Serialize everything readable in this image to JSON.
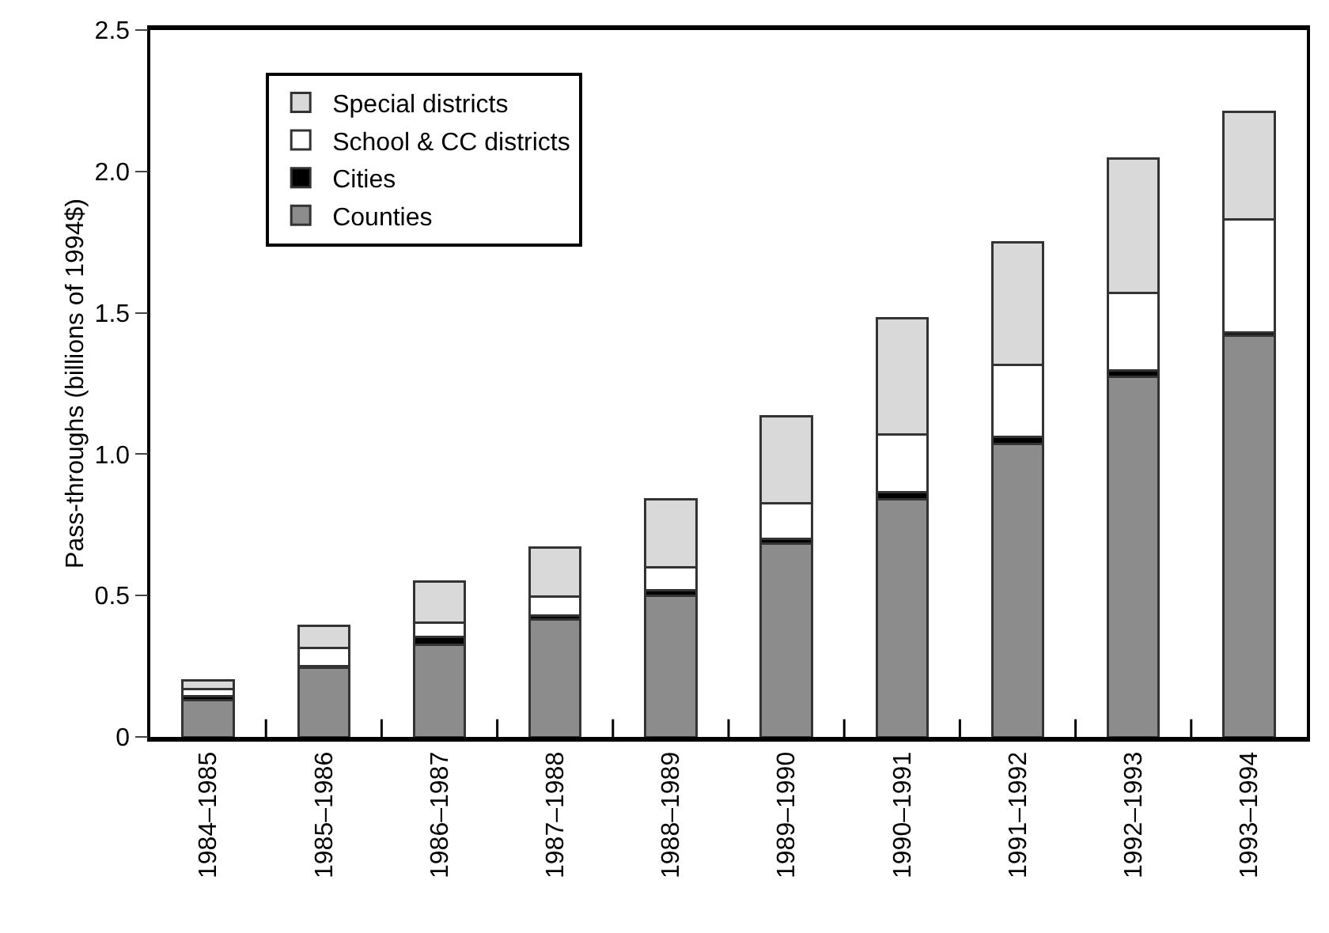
{
  "chart_data": {
    "type": "bar",
    "stacked": true,
    "ylabel": "Pass-throughs (billions of 1994$)",
    "categories": [
      "1984–1985",
      "1985–1986",
      "1986–1987",
      "1987–1988",
      "1988–1989",
      "1989–1990",
      "1990–1991",
      "1991–1992",
      "1992–1993",
      "1993–1994"
    ],
    "series": [
      {
        "name": "Counties",
        "color": "#8c8c8c",
        "values": [
          0.13,
          0.245,
          0.325,
          0.415,
          0.5,
          0.685,
          0.84,
          1.035,
          1.275,
          1.42
        ]
      },
      {
        "name": "Cities",
        "color": "#000000",
        "values": [
          0.015,
          0.005,
          0.03,
          0.015,
          0.02,
          0.015,
          0.025,
          0.025,
          0.02,
          0.01
        ]
      },
      {
        "name": "School & CC districts",
        "color": "#ffffff",
        "values": [
          0.025,
          0.065,
          0.05,
          0.065,
          0.08,
          0.125,
          0.205,
          0.255,
          0.275,
          0.4
        ]
      },
      {
        "name": "Special districts",
        "color": "#d9d9d9",
        "values": [
          0.03,
          0.077,
          0.145,
          0.175,
          0.24,
          0.31,
          0.41,
          0.435,
          0.475,
          0.38
        ]
      }
    ],
    "ylim": [
      0,
      2.5
    ],
    "yticks": [
      0,
      {
        "value": 0.5,
        "label": "0.5"
      },
      {
        "value": 1,
        "label": "1.0"
      },
      {
        "value": 1.5,
        "label": "1.5"
      },
      {
        "value": 2,
        "label": "2.0"
      },
      {
        "value": 2.5,
        "label": "2.5"
      }
    ],
    "grid": false,
    "legend": "top left"
  }
}
